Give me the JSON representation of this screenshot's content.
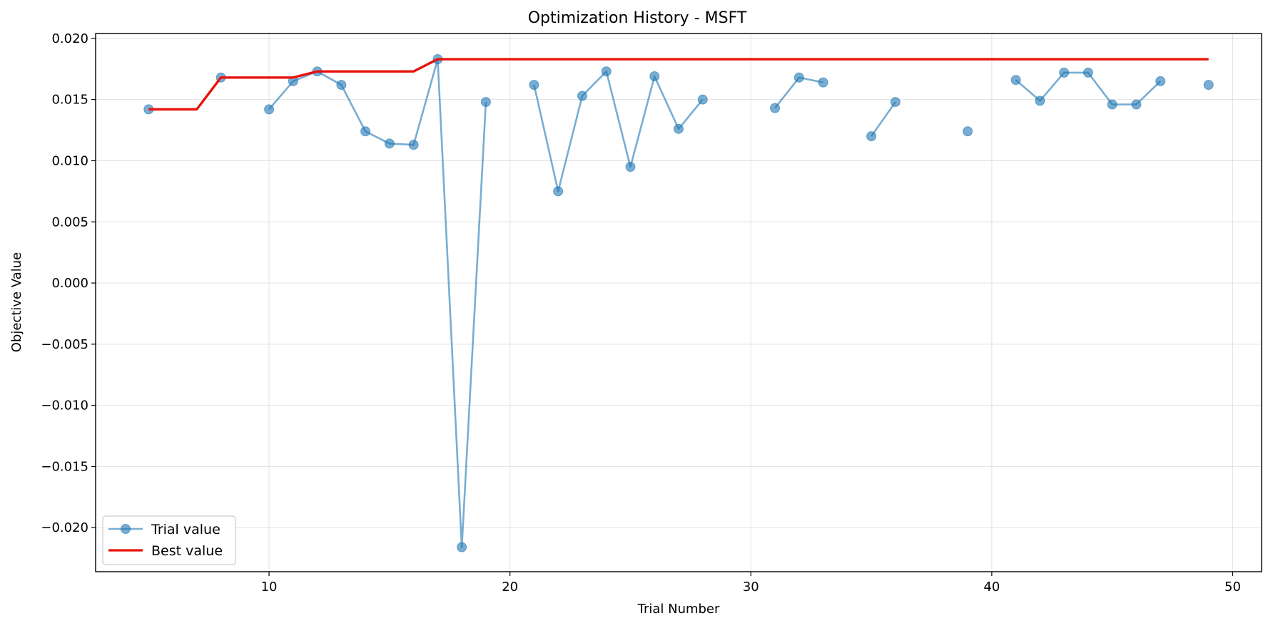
{
  "chart_data": {
    "type": "line",
    "title": "Optimization History - MSFT",
    "xlabel": "Trial Number",
    "ylabel": "Objective Value",
    "xlim": [
      2.8,
      51.2
    ],
    "ylim": [
      -0.0236,
      0.0204
    ],
    "xticks": [
      10,
      20,
      30,
      40,
      50
    ],
    "yticks": [
      -0.02,
      -0.015,
      -0.01,
      -0.005,
      0.0,
      0.005,
      0.01,
      0.015,
      0.02
    ],
    "ytick_labels": [
      "−0.020",
      "−0.015",
      "−0.010",
      "−0.005",
      "0.000",
      "0.005",
      "0.010",
      "0.015",
      "0.020"
    ],
    "grid": true,
    "legend_position": "lower-left",
    "series": [
      {
        "name": "Trial value",
        "color": "#1f77b4",
        "style": "line-marker",
        "points": [
          [
            5,
            0.0142
          ],
          [
            6,
            null
          ],
          [
            7,
            null
          ],
          [
            8,
            0.0168
          ],
          [
            9,
            null
          ],
          [
            10,
            0.0142
          ],
          [
            11,
            0.0165
          ],
          [
            12,
            0.0173
          ],
          [
            13,
            0.0162
          ],
          [
            14,
            0.0124
          ],
          [
            15,
            0.0114
          ],
          [
            16,
            0.0113
          ],
          [
            17,
            0.0183
          ],
          [
            18,
            -0.0216
          ],
          [
            19,
            0.0148
          ],
          [
            20,
            null
          ],
          [
            21,
            0.0162
          ],
          [
            22,
            0.0075
          ],
          [
            23,
            0.0153
          ],
          [
            24,
            0.0173
          ],
          [
            25,
            0.0095
          ],
          [
            26,
            0.0169
          ],
          [
            27,
            0.0126
          ],
          [
            28,
            0.015
          ],
          [
            29,
            null
          ],
          [
            30,
            null
          ],
          [
            31,
            0.0143
          ],
          [
            32,
            0.0168
          ],
          [
            33,
            0.0164
          ],
          [
            34,
            null
          ],
          [
            35,
            0.012
          ],
          [
            36,
            0.0148
          ],
          [
            37,
            null
          ],
          [
            38,
            null
          ],
          [
            39,
            0.0124
          ],
          [
            40,
            null
          ],
          [
            41,
            0.0166
          ],
          [
            42,
            0.0149
          ],
          [
            43,
            0.0172
          ],
          [
            44,
            0.0172
          ],
          [
            45,
            0.0146
          ],
          [
            46,
            0.0146
          ],
          [
            47,
            0.0165
          ],
          [
            48,
            null
          ],
          [
            49,
            0.0162
          ]
        ]
      },
      {
        "name": "Best value",
        "color": "#e8120c",
        "style": "line",
        "points": [
          [
            5,
            0.0142
          ],
          [
            7,
            0.0142
          ],
          [
            8,
            0.0168
          ],
          [
            11,
            0.0168
          ],
          [
            12,
            0.0173
          ],
          [
            16,
            0.0173
          ],
          [
            17,
            0.0183
          ],
          [
            49,
            0.0183
          ]
        ]
      }
    ]
  }
}
